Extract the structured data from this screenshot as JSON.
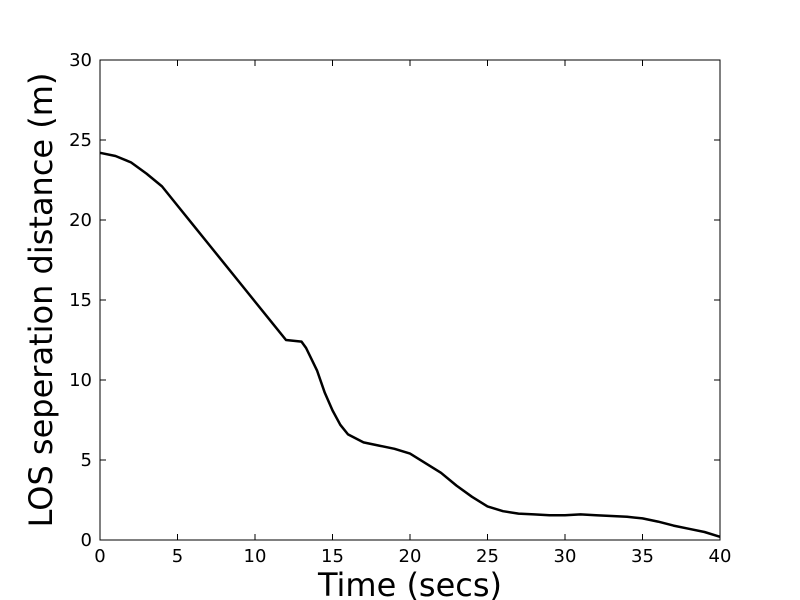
{
  "chart_data": {
    "type": "line",
    "title": "",
    "xlabel": "Time (secs)",
    "ylabel": "LOS seperation distance (m)",
    "xlim": [
      0,
      40
    ],
    "ylim": [
      0,
      30
    ],
    "grid": false,
    "x_ticks": [
      "0",
      "5",
      "10",
      "15",
      "20",
      "25",
      "30",
      "35",
      "40"
    ],
    "y_ticks": [
      "0",
      "5",
      "10",
      "15",
      "20",
      "25",
      "30"
    ],
    "series": [
      {
        "color": "#000000",
        "x": [
          0,
          1,
          2,
          3,
          4,
          5,
          6,
          7,
          8,
          9,
          10,
          11,
          12,
          13,
          13.3,
          14,
          14.5,
          15,
          15.5,
          16,
          17,
          18,
          19,
          20,
          21,
          22,
          23,
          24,
          25,
          26,
          27,
          28,
          29,
          30,
          31,
          32,
          33,
          34,
          35,
          36,
          37,
          38,
          39,
          40
        ],
        "y": [
          24.2,
          24.0,
          23.6,
          22.9,
          22.1,
          20.9,
          19.7,
          18.5,
          17.3,
          16.1,
          14.9,
          13.7,
          12.5,
          12.4,
          12.0,
          10.6,
          9.2,
          8.1,
          7.2,
          6.6,
          6.1,
          5.9,
          5.7,
          5.4,
          4.8,
          4.2,
          3.4,
          2.7,
          2.1,
          1.8,
          1.65,
          1.6,
          1.55,
          1.55,
          1.6,
          1.55,
          1.5,
          1.45,
          1.35,
          1.15,
          0.9,
          0.7,
          0.5,
          0.2
        ]
      }
    ]
  }
}
